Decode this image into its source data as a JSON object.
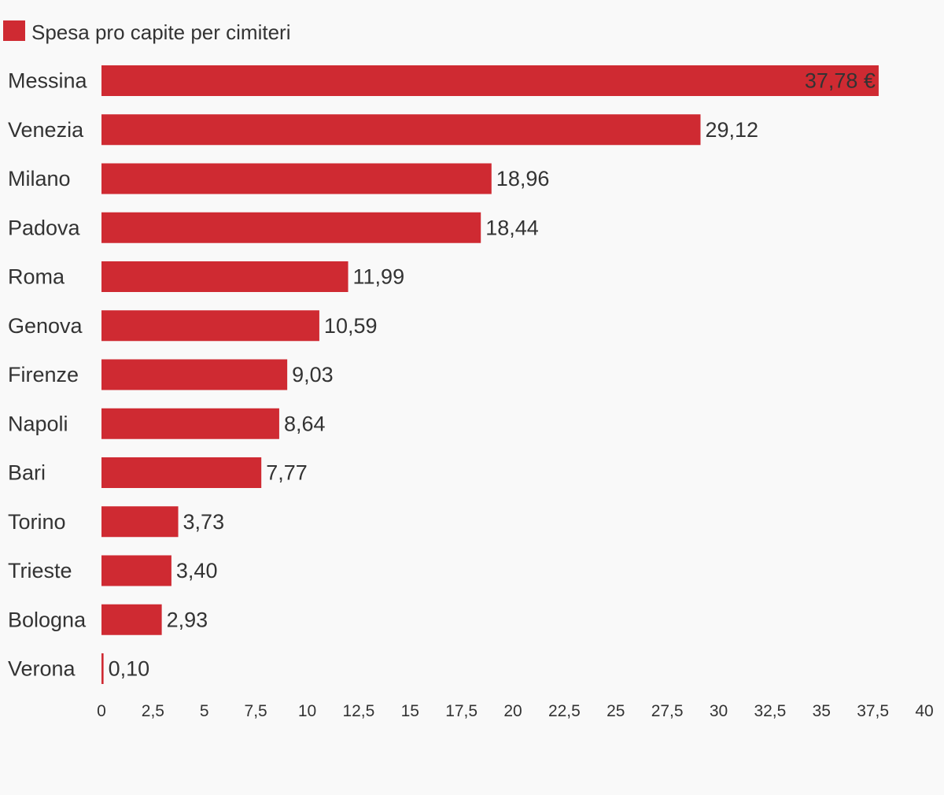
{
  "chart_data": {
    "type": "bar",
    "orientation": "horizontal",
    "categories": [
      "Messina",
      "Venezia",
      "Milano",
      "Padova",
      "Roma",
      "Genova",
      "Firenze",
      "Napoli",
      "Bari",
      "Torino",
      "Trieste",
      "Bologna",
      "Verona"
    ],
    "series": [
      {
        "name": "Spesa pro capite per cimiteri",
        "color": "#cf2a32",
        "values": [
          37.78,
          29.12,
          18.96,
          18.44,
          11.99,
          10.59,
          9.03,
          8.64,
          7.77,
          3.73,
          3.4,
          2.93,
          0.1
        ],
        "value_labels": [
          "37,78 €",
          "29,12",
          "18,96",
          "18,44",
          "11,99",
          "10,59",
          "9,03",
          "8,64",
          "7,77",
          "3,73",
          "3,40",
          "2,93",
          "0,10"
        ]
      }
    ],
    "xlim": [
      0,
      40
    ],
    "x_ticks": [
      0,
      2.5,
      5,
      7.5,
      10,
      12.5,
      15,
      17.5,
      20,
      22.5,
      25,
      27.5,
      30,
      32.5,
      35,
      37.5,
      40
    ],
    "x_tick_labels": [
      "0",
      "2,5",
      "5",
      "7,5",
      "10",
      "12,5",
      "15",
      "17,5",
      "20",
      "22,5",
      "25",
      "27,5",
      "30",
      "32,5",
      "35",
      "37,5",
      "40"
    ],
    "legend_position": "top-left",
    "grid": false
  }
}
